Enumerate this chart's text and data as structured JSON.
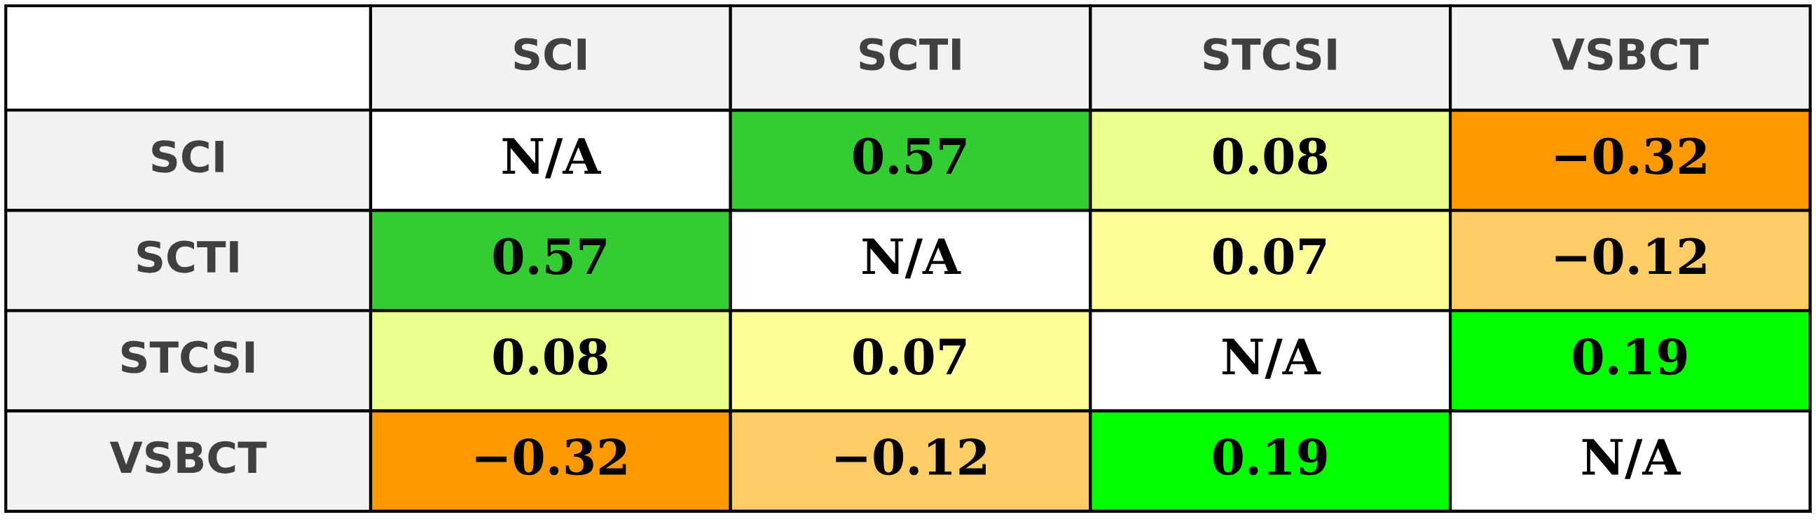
{
  "chart_data": {
    "type": "heatmap",
    "categories": [
      "SCI",
      "SCTI",
      "STCSI",
      "VSBCT"
    ],
    "y_categories": [
      "SCI",
      "SCTI",
      "STCSI",
      "VSBCT"
    ],
    "cells": [
      [
        null,
        0.57,
        0.08,
        -0.32
      ],
      [
        0.57,
        null,
        0.07,
        -0.12
      ],
      [
        0.08,
        0.07,
        null,
        0.19
      ],
      [
        -0.32,
        -0.12,
        0.19,
        null
      ]
    ],
    "cell_labels": [
      [
        "N/A",
        "0.57",
        "0.08",
        "−0.32"
      ],
      [
        "0.57",
        "N/A",
        "0.07",
        "−0.12"
      ],
      [
        "0.08",
        "0.07",
        "N/A",
        "0.19"
      ],
      [
        "−0.32",
        "−0.12",
        "0.19",
        "N/A"
      ]
    ]
  }
}
